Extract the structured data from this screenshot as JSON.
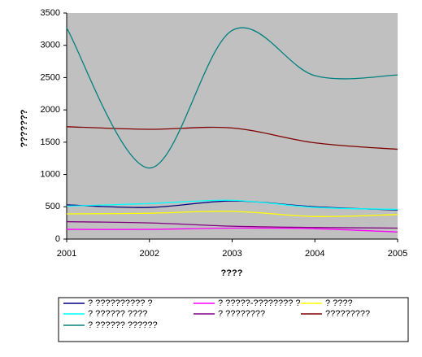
{
  "chart_data": {
    "type": "line",
    "smooth": true,
    "x_label": "????",
    "y_label": "???????",
    "x": [
      2001,
      2002,
      2003,
      2004,
      2005
    ],
    "xlim": [
      2001,
      2005
    ],
    "xticks": [
      2001,
      2002,
      2003,
      2004,
      2005
    ],
    "ylim": [
      0,
      3500
    ],
    "yticks": [
      0,
      500,
      1000,
      1500,
      2000,
      2500,
      3000,
      3500
    ],
    "plot_background": "#c0c0c0",
    "series": [
      {
        "name": "? ?????????? ?",
        "color": "#000080",
        "values": [
          530,
          490,
          590,
          500,
          450
        ]
      },
      {
        "name": "? ?????-???????? ?",
        "color": "#ff00ff",
        "values": [
          150,
          150,
          170,
          160,
          110
        ]
      },
      {
        "name": "? ????",
        "color": "#ffff00",
        "values": [
          390,
          400,
          430,
          350,
          380
        ]
      },
      {
        "name": "? ?????? ????",
        "color": "#00ffff",
        "values": [
          510,
          550,
          600,
          490,
          460
        ]
      },
      {
        "name": "? ????????",
        "color": "#800080",
        "values": [
          270,
          250,
          200,
          180,
          170
        ]
      },
      {
        "name": "?????????",
        "color": "#800000",
        "values": [
          1740,
          1700,
          1720,
          1490,
          1390
        ]
      },
      {
        "name": "? ?????? ??????",
        "color": "#008080",
        "values": [
          3270,
          1100,
          3230,
          2530,
          2540
        ]
      }
    ]
  }
}
